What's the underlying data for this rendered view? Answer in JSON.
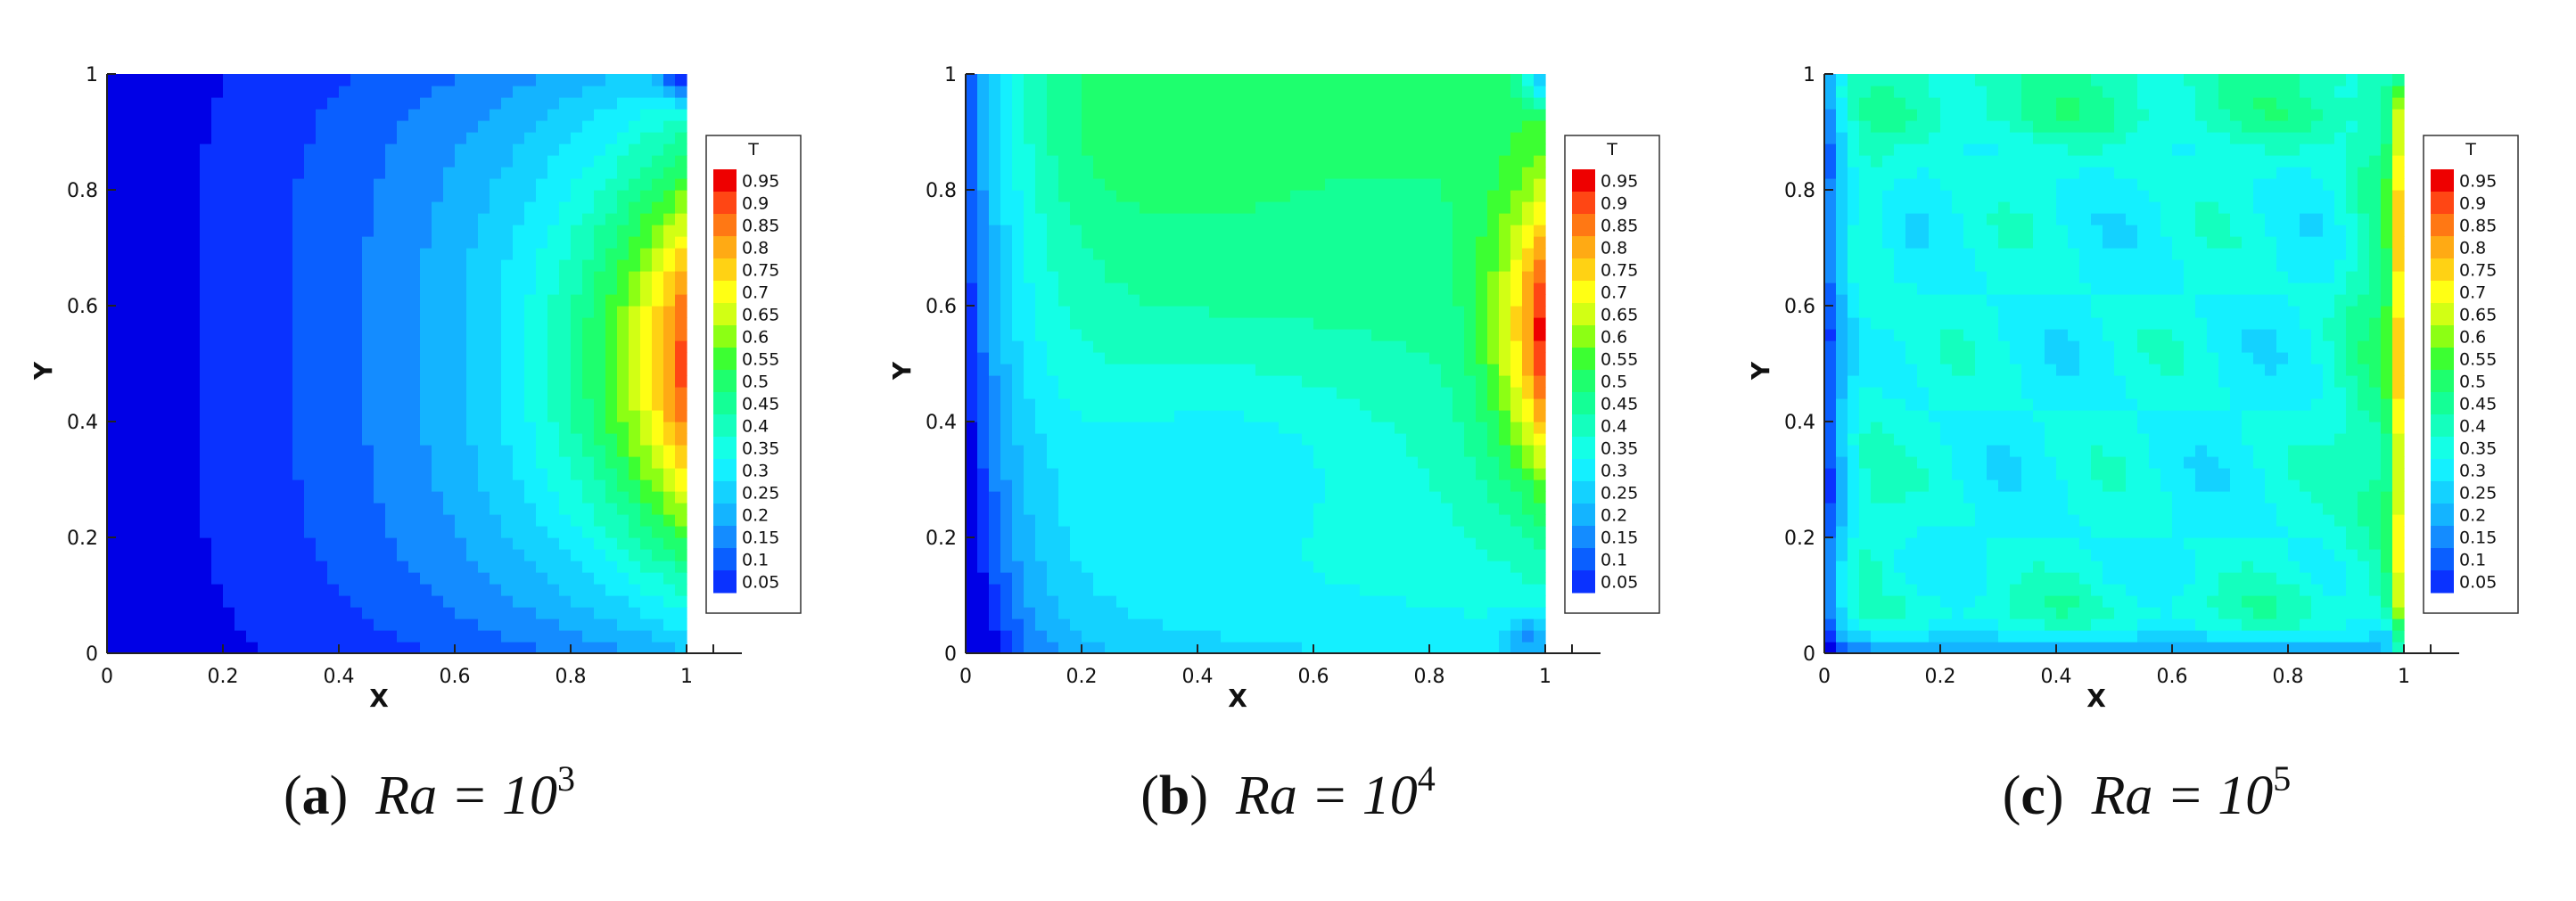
{
  "chart_data": [
    {
      "type": "heatmap",
      "caption_letter": "a",
      "caption_text": "Ra = 10",
      "caption_exponent": "3",
      "xlabel": "X",
      "ylabel": "Y",
      "xlim": [
        0,
        1
      ],
      "ylim": [
        0,
        1
      ],
      "xticks": [
        "0",
        "0.2",
        "0.4",
        "0.6",
        "0.8",
        "1"
      ],
      "yticks": [
        "0",
        "0.2",
        "0.4",
        "0.6",
        "0.8",
        "1"
      ],
      "legend_title": "T",
      "legend_position": "right",
      "legend_levels": [
        "0.95",
        "0.9",
        "0.85",
        "0.8",
        "0.75",
        "0.7",
        "0.65",
        "0.6",
        "0.55",
        "0.5",
        "0.45",
        "0.4",
        "0.35",
        "0.3",
        "0.25",
        "0.2",
        "0.15",
        "0.1",
        "0.05"
      ],
      "field": "ra3"
    },
    {
      "type": "heatmap",
      "caption_letter": "b",
      "caption_text": "Ra = 10",
      "caption_exponent": "4",
      "xlabel": "X",
      "ylabel": "Y",
      "xlim": [
        0,
        1
      ],
      "ylim": [
        0,
        1
      ],
      "xticks": [
        "0",
        "0.2",
        "0.4",
        "0.6",
        "0.8",
        "1"
      ],
      "yticks": [
        "0",
        "0.2",
        "0.4",
        "0.6",
        "0.8",
        "1"
      ],
      "legend_title": "T",
      "legend_position": "right",
      "legend_levels": [
        "0.95",
        "0.9",
        "0.85",
        "0.8",
        "0.75",
        "0.7",
        "0.65",
        "0.6",
        "0.55",
        "0.5",
        "0.45",
        "0.4",
        "0.35",
        "0.3",
        "0.25",
        "0.2",
        "0.15",
        "0.1",
        "0.05"
      ],
      "field": "ra4"
    },
    {
      "type": "heatmap",
      "caption_letter": "c",
      "caption_text": "Ra = 10",
      "caption_exponent": "5",
      "xlabel": "X",
      "ylabel": "Y",
      "xlim": [
        0,
        1
      ],
      "ylim": [
        0,
        1
      ],
      "xticks": [
        "0",
        "0.2",
        "0.4",
        "0.6",
        "0.8",
        "1"
      ],
      "yticks": [
        "0",
        "0.2",
        "0.4",
        "0.6",
        "0.8",
        "1"
      ],
      "legend_title": "T",
      "legend_position": "right",
      "legend_levels": [
        "0.95",
        "0.9",
        "0.85",
        "0.8",
        "0.75",
        "0.7",
        "0.65",
        "0.6",
        "0.55",
        "0.5",
        "0.45",
        "0.4",
        "0.35",
        "0.3",
        "0.25",
        "0.2",
        "0.15",
        "0.1",
        "0.05"
      ],
      "field": "ra5"
    }
  ],
  "colormap": [
    "#0000e6",
    "#0a32ff",
    "#0a5fff",
    "#148cff",
    "#14b4ff",
    "#14d2ff",
    "#14f0ff",
    "#14ffe6",
    "#14ffbe",
    "#14ff96",
    "#1eff6e",
    "#3cff32",
    "#8cff14",
    "#d2ff14",
    "#ffff14",
    "#ffd214",
    "#ffaa14",
    "#ff7814",
    "#ff4614",
    "#ee0000"
  ]
}
